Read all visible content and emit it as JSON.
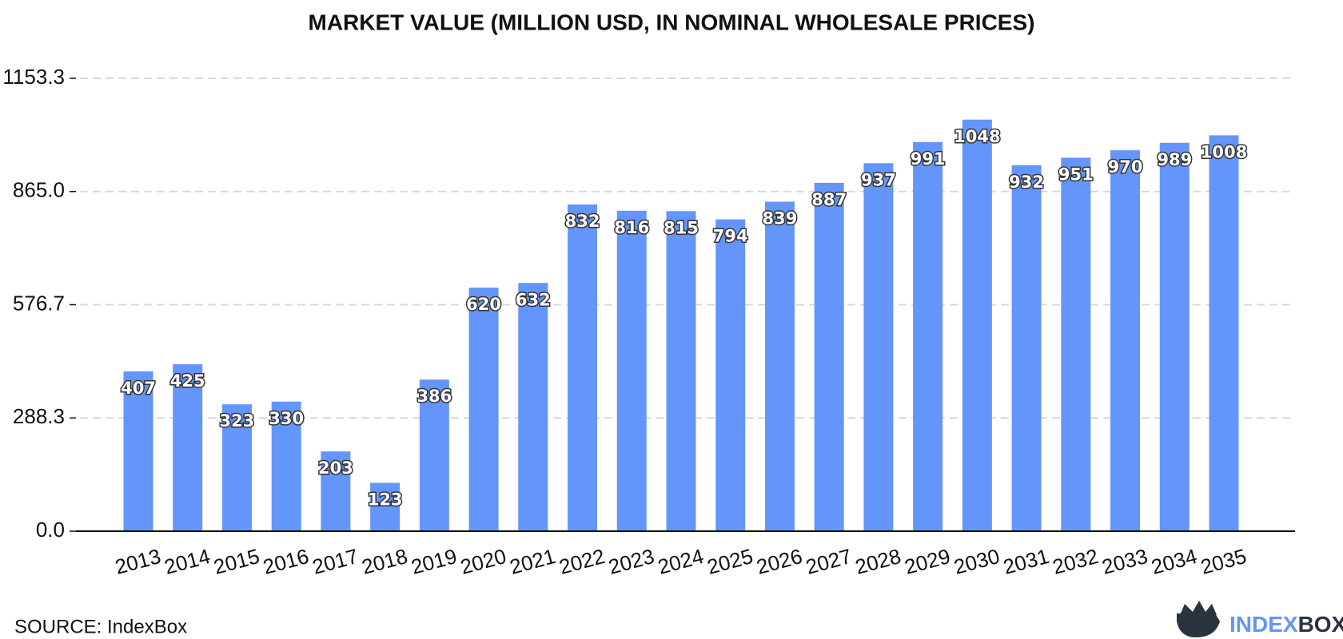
{
  "chart_data": {
    "type": "bar",
    "title": "MARKET VALUE (MILLION USD, IN NOMINAL WHOLESALE PRICES)",
    "categories": [
      "2013",
      "2014",
      "2015",
      "2016",
      "2017",
      "2018",
      "2019",
      "2020",
      "2021",
      "2022",
      "2023",
      "2024",
      "2025",
      "2026",
      "2027",
      "2028",
      "2029",
      "2030",
      "2031",
      "2032",
      "2033",
      "2034",
      "2035"
    ],
    "values": [
      407,
      425,
      323,
      330,
      203,
      123,
      386,
      620,
      632,
      832,
      816,
      815,
      794,
      839,
      887,
      937,
      991,
      1048,
      932,
      951,
      970,
      989,
      1008
    ],
    "color": "#6495fa",
    "ylim": [
      0,
      1153.3
    ],
    "yticks": [
      {
        "value": 0,
        "label": "0.0"
      },
      288.3,
      576.7,
      {
        "value": 865,
        "label": "865.0"
      },
      1153.3
    ],
    "grid": true
  },
  "source": "SOURCE: IndexBox",
  "logo": {
    "part1": "INDEX",
    "part2": "BOX"
  }
}
